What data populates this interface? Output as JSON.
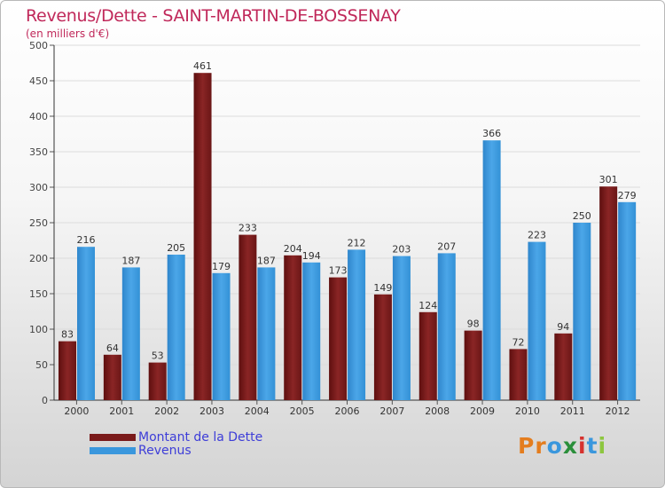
{
  "chart_data": {
    "type": "bar",
    "title": "Revenus/Dette - SAINT-MARTIN-DE-BOSSENAY",
    "subtitle": "(en milliers d'€)",
    "categories": [
      "2000",
      "2001",
      "2002",
      "2003",
      "2004",
      "2005",
      "2006",
      "2007",
      "2008",
      "2009",
      "2010",
      "2011",
      "2012"
    ],
    "series": [
      {
        "name": "Montant de la Dette",
        "color": "#7a1a1a",
        "values": [
          83,
          64,
          53,
          461,
          233,
          204,
          173,
          149,
          124,
          98,
          72,
          94,
          301
        ]
      },
      {
        "name": "Revenus",
        "color": "#3a97dd",
        "values": [
          216,
          187,
          205,
          179,
          187,
          194,
          212,
          203,
          207,
          366,
          223,
          250,
          279
        ]
      }
    ],
    "ylim": [
      0,
      500
    ],
    "yticks": [
      0,
      50,
      100,
      150,
      200,
      250,
      300,
      350,
      400,
      450,
      500
    ],
    "grid": true,
    "legend_position": "bottom-left"
  },
  "brand": {
    "logo_text": "Proxiti",
    "letter_colors": [
      "#e47d1e",
      "#e47d1e",
      "#3a97dd",
      "#2b8f3b",
      "#d6322e",
      "#3a97dd",
      "#8dc63f"
    ]
  }
}
